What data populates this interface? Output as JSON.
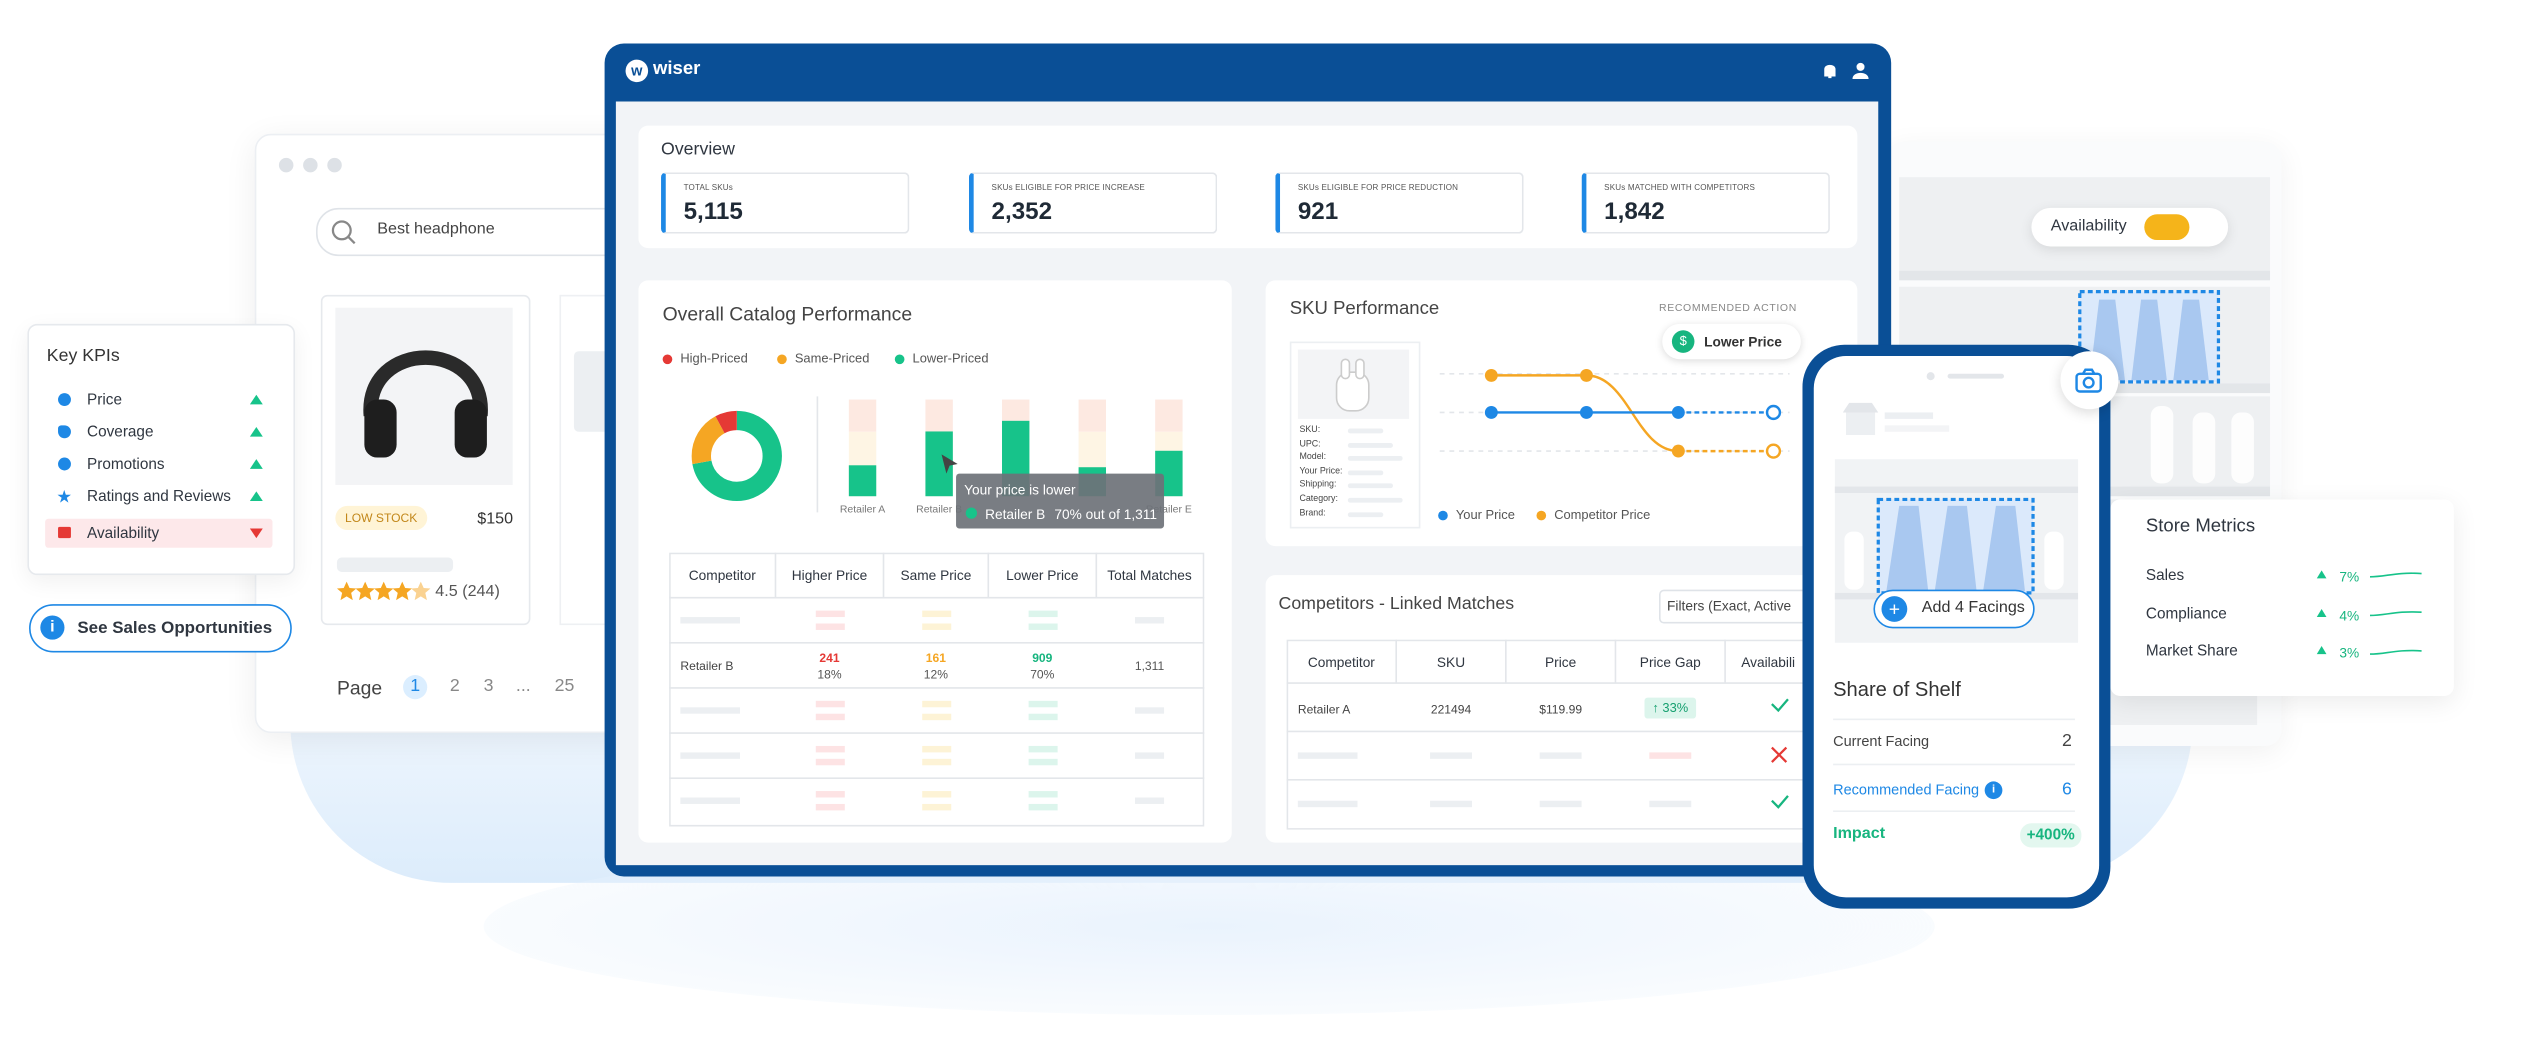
{
  "browser": {
    "search": "Best headphone",
    "stock_badge": "LOW STOCK",
    "price": "$150",
    "rating": "4.5 (244)",
    "pagination": {
      "label": "Page",
      "pages": [
        "1",
        "2",
        "3",
        "...",
        "25"
      ]
    }
  },
  "key_kpis": {
    "title": "Key KPIs",
    "items": [
      "Price",
      "Coverage",
      "Promotions",
      "Ratings and Reviews",
      "Availability"
    ],
    "button": "See Sales Opportunities"
  },
  "dashboard": {
    "logo": "wiser",
    "overview": {
      "title": "Overview",
      "cards": [
        {
          "label": "TOTAL SKUs",
          "value": "5,115"
        },
        {
          "label": "SKUs ELIGIBLE FOR PRICE INCREASE",
          "value": "2,352"
        },
        {
          "label": "SKUs ELIGIBLE FOR PRICE REDUCTION",
          "value": "921"
        },
        {
          "label": "SKUs MATCHED WITH COMPETITORS",
          "value": "1,842"
        }
      ]
    },
    "catalog": {
      "title": "Overall Catalog Performance",
      "tooltip": {
        "title": "Your price is lower",
        "retailer": "Retailer B",
        "text": "70% out of 1,311"
      },
      "table": {
        "headers": [
          "Competitor",
          "Higher Price",
          "Same Price",
          "Lower Price",
          "Total Matches"
        ],
        "rows": [
          {
            "competitor": "Retailer B",
            "higher": [
              "241",
              "18%"
            ],
            "same": [
              "161",
              "12%"
            ],
            "lower": [
              "909",
              "70%"
            ],
            "total": "1,311"
          }
        ]
      }
    },
    "sku": {
      "title": "SKU Performance",
      "action_label": "RECOMMENDED ACTION",
      "action": "Lower Price",
      "fields": [
        "SKU:",
        "UPC:",
        "Model:",
        "Your Price:",
        "Shipping:",
        "Category:",
        "Brand:"
      ],
      "legend": [
        "Your Price",
        "Competitor Price"
      ]
    },
    "competitors": {
      "title": "Competitors - Linked Matches",
      "filter": "Filters (Exact, Active",
      "headers": [
        "Competitor",
        "SKU",
        "Price",
        "Price Gap",
        "Availabili"
      ],
      "rows": [
        {
          "competitor": "Retailer A",
          "sku": "221494",
          "price": "$119.99",
          "gap": "33%"
        }
      ]
    }
  },
  "shelf": {
    "toggle": "Availability",
    "metrics": {
      "title": "Store Metrics",
      "rows": [
        {
          "name": "Sales",
          "change": "7%"
        },
        {
          "name": "Compliance",
          "change": "4%"
        },
        {
          "name": "Market Share",
          "change": "3%"
        }
      ]
    }
  },
  "phone": {
    "button": "Add 4 Facings",
    "title": "Share of Shelf",
    "current": {
      "label": "Current Facing",
      "value": "2"
    },
    "recommended": {
      "label": "Recommended Facing",
      "value": "6"
    },
    "impact": {
      "label": "Impact",
      "value": "+400%"
    }
  },
  "chart_data": [
    {
      "type": "donut",
      "categories": [
        "High-Priced",
        "Same-Priced",
        "Lower-Priced"
      ],
      "values": [
        8,
        20,
        72
      ],
      "colors": [
        "#e53935",
        "#f5a623",
        "#17c38a"
      ]
    },
    {
      "type": "bar",
      "categories": [
        "Retailer A",
        "Retailer B",
        null,
        null,
        "Retailer E"
      ],
      "values": [
        32,
        67,
        78,
        30,
        47
      ],
      "ylim": [
        0,
        100
      ],
      "color": "#17c38a"
    }
  ]
}
